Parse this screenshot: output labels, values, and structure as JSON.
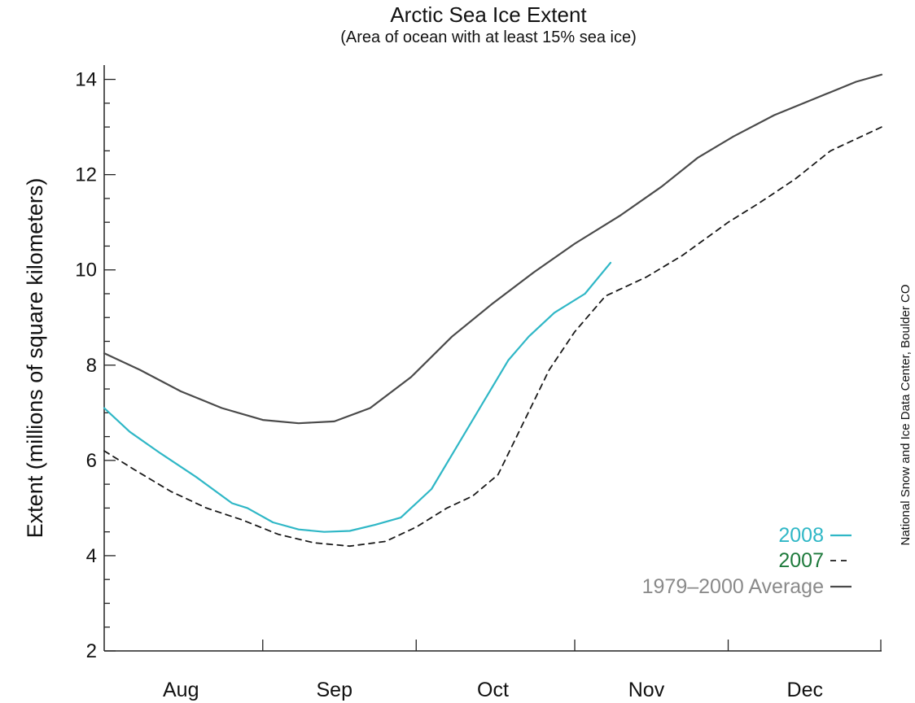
{
  "chart_data": {
    "type": "line",
    "title": "Arctic Sea Ice Extent",
    "subtitle": "(Area of ocean with at least 15% sea ice)",
    "ylabel": "Extent (millions of square kilometers)",
    "xlabel": "",
    "ylim": [
      2,
      14.3
    ],
    "yticks": [
      2,
      4,
      6,
      8,
      10,
      12,
      14
    ],
    "xlim": [
      "2000-08-01",
      "2000-12-31"
    ],
    "month_ticks": [
      {
        "label": "Aug",
        "date": "2000-08-16"
      },
      {
        "label": "Sep",
        "date": "2000-09-15"
      },
      {
        "label": "Oct",
        "date": "2000-10-16"
      },
      {
        "label": "Nov",
        "date": "2000-11-15"
      },
      {
        "label": "Dec",
        "date": "2000-12-16"
      }
    ],
    "month_boundaries": [
      "2000-09-01",
      "2000-10-01",
      "2000-11-01",
      "2000-12-01",
      "2000-12-31"
    ],
    "grid": false,
    "legend_position": "bottom-right",
    "credit": "National Snow and Ice Data Center, Boulder CO",
    "series": [
      {
        "name": "2008",
        "style": "solid",
        "color": "#2fb7c6",
        "points": [
          [
            "2000-08-01",
            7.1
          ],
          [
            "2000-08-06",
            6.6
          ],
          [
            "2000-08-12",
            6.15
          ],
          [
            "2000-08-19",
            5.65
          ],
          [
            "2000-08-26",
            5.1
          ],
          [
            "2000-08-29",
            5.0
          ],
          [
            "2000-09-03",
            4.7
          ],
          [
            "2000-09-08",
            4.55
          ],
          [
            "2000-09-13",
            4.5
          ],
          [
            "2000-09-18",
            4.52
          ],
          [
            "2000-09-23",
            4.65
          ],
          [
            "2000-09-28",
            4.8
          ],
          [
            "2000-10-04",
            5.4
          ],
          [
            "2000-10-09",
            6.3
          ],
          [
            "2000-10-14",
            7.2
          ],
          [
            "2000-10-19",
            8.1
          ],
          [
            "2000-10-23",
            8.6
          ],
          [
            "2000-10-28",
            9.1
          ],
          [
            "2000-11-03",
            9.5
          ],
          [
            "2000-11-08",
            10.15
          ]
        ]
      },
      {
        "name": "2007",
        "style": "dashed",
        "color": "#1a1a1a",
        "points": [
          [
            "2000-08-01",
            6.2
          ],
          [
            "2000-08-07",
            5.8
          ],
          [
            "2000-08-14",
            5.35
          ],
          [
            "2000-08-21",
            5.0
          ],
          [
            "2000-08-28",
            4.75
          ],
          [
            "2000-09-04",
            4.45
          ],
          [
            "2000-09-11",
            4.27
          ],
          [
            "2000-09-18",
            4.2
          ],
          [
            "2000-09-25",
            4.3
          ],
          [
            "2000-10-01",
            4.6
          ],
          [
            "2000-10-07",
            5.0
          ],
          [
            "2000-10-12",
            5.25
          ],
          [
            "2000-10-17",
            5.7
          ],
          [
            "2000-10-22",
            6.8
          ],
          [
            "2000-10-27",
            7.9
          ],
          [
            "2000-11-01",
            8.7
          ],
          [
            "2000-11-07",
            9.45
          ],
          [
            "2000-11-15",
            9.85
          ],
          [
            "2000-11-22",
            10.3
          ],
          [
            "2000-12-01",
            11.0
          ],
          [
            "2000-12-07",
            11.4
          ],
          [
            "2000-12-14",
            11.9
          ],
          [
            "2000-12-21",
            12.5
          ],
          [
            "2000-12-31",
            13.0
          ]
        ]
      },
      {
        "name": "1979–2000 Average",
        "style": "solid",
        "color": "#4a4a4a",
        "points": [
          [
            "2000-08-01",
            8.25
          ],
          [
            "2000-08-08",
            7.9
          ],
          [
            "2000-08-16",
            7.45
          ],
          [
            "2000-08-24",
            7.1
          ],
          [
            "2000-09-01",
            6.85
          ],
          [
            "2000-09-08",
            6.78
          ],
          [
            "2000-09-15",
            6.82
          ],
          [
            "2000-09-22",
            7.1
          ],
          [
            "2000-09-30",
            7.75
          ],
          [
            "2000-10-08",
            8.6
          ],
          [
            "2000-10-16",
            9.3
          ],
          [
            "2000-10-24",
            9.95
          ],
          [
            "2000-11-01",
            10.55
          ],
          [
            "2000-11-10",
            11.15
          ],
          [
            "2000-11-18",
            11.75
          ],
          [
            "2000-11-25",
            12.35
          ],
          [
            "2000-12-02",
            12.8
          ],
          [
            "2000-12-10",
            13.25
          ],
          [
            "2000-12-18",
            13.6
          ],
          [
            "2000-12-26",
            13.95
          ],
          [
            "2000-12-31",
            14.1
          ]
        ]
      }
    ]
  }
}
